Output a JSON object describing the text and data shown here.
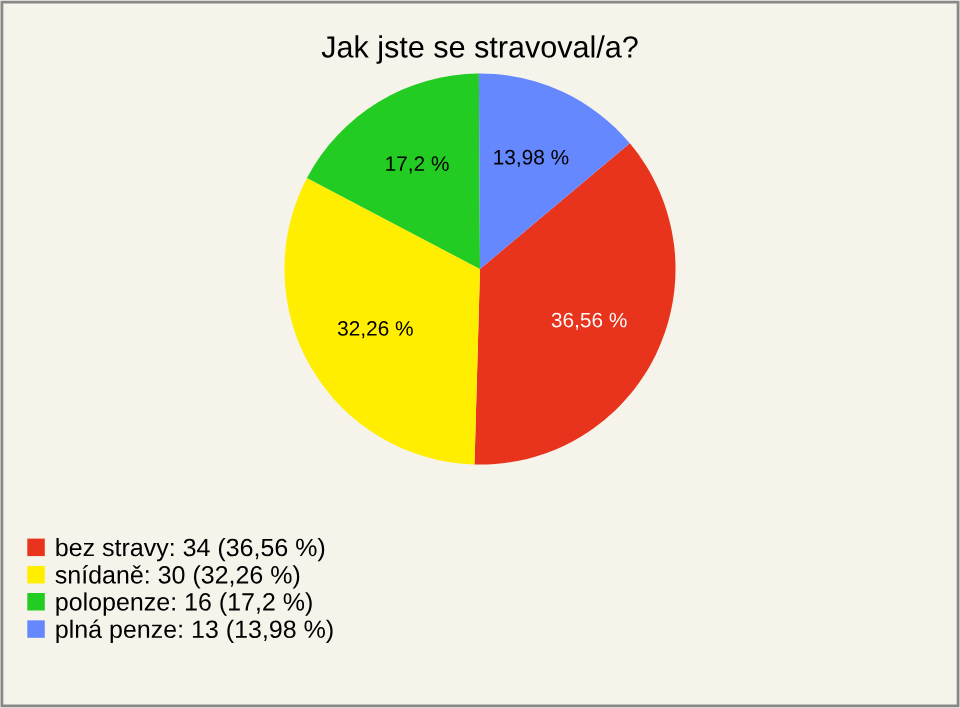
{
  "chart_data": {
    "type": "pie",
    "title": "Jak jste se stravoval/a?",
    "categories": [
      "bez stravy: 34 (36,56 %)",
      "snídaně: 30 (32,26 %)",
      "polopenze: 16 (17,2 %)",
      "plná penze: 13 (13,98 %)"
    ],
    "values": [
      36.56,
      32.26,
      17.2,
      13.98
    ],
    "value_labels": [
      "36,56 %",
      "32,26 %",
      "17,2 %",
      "13,98 %"
    ],
    "colors": [
      "#e8341c",
      "#ffee00",
      "#22cc22",
      "#6688ff"
    ],
    "legend": "bottom left"
  }
}
